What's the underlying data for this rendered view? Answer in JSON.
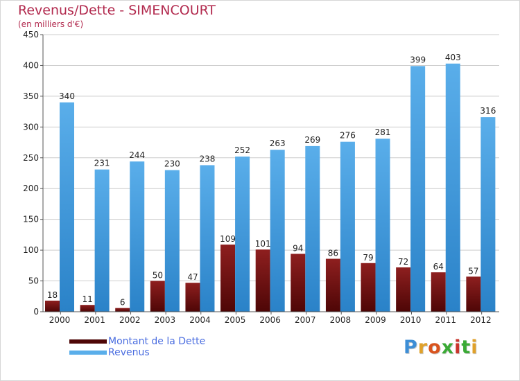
{
  "colors": {
    "title": "#b22a4e",
    "debt_top": "#8e1f1f",
    "debt_bottom": "#4e0606",
    "revenue_top": "#5aaeea",
    "revenue_bottom": "#2a82c8",
    "grid": "#cccccc",
    "axis_text": "#222222",
    "legend_text": "#4a6de0"
  },
  "brand": {
    "name": "Proxiti",
    "letters": [
      "P",
      "r",
      "o",
      "x",
      "i",
      "t",
      "i"
    ],
    "letter_colors": [
      "#3d8ed6",
      "#e0a12a",
      "#d9541e",
      "#3aaa35",
      "#c9352c",
      "#3aaa35",
      "#e0a12a"
    ]
  },
  "chart_data": {
    "type": "bar",
    "title": "Revenus/Dette - SIMENCOURT",
    "subtitle": "(en milliers d'€)",
    "xlabel": "",
    "ylabel": "",
    "ylim": [
      0,
      450
    ],
    "yticks": [
      0,
      50,
      100,
      150,
      200,
      250,
      300,
      350,
      400,
      450
    ],
    "grid": true,
    "legend_position": "bottom-left",
    "categories": [
      "2000",
      "2001",
      "2002",
      "2003",
      "2004",
      "2005",
      "2006",
      "2007",
      "2008",
      "2009",
      "2010",
      "2011",
      "2012"
    ],
    "series": [
      {
        "name": "Montant de la Dette",
        "values": [
          18,
          11,
          6,
          50,
          47,
          109,
          101,
          94,
          86,
          79,
          72,
          64,
          57
        ]
      },
      {
        "name": "Revenus",
        "values": [
          340,
          231,
          244,
          230,
          238,
          252,
          263,
          269,
          276,
          281,
          399,
          403,
          316
        ]
      }
    ]
  }
}
